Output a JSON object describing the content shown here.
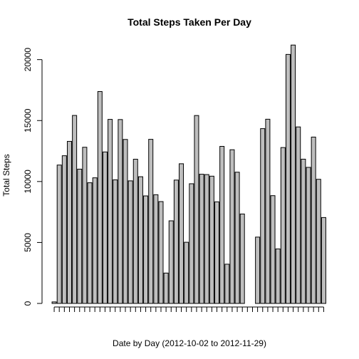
{
  "chart_data": {
    "type": "bar",
    "title": "Total Steps Taken Per Day",
    "xlabel": "Date by Day (2012-10-02 to 2012-11-29)",
    "ylabel": "Total Steps",
    "ylim": [
      0,
      21500
    ],
    "yticks": [
      0,
      5000,
      10000,
      15000,
      20000
    ],
    "grid": false,
    "values": [
      126,
      11352,
      12116,
      13294,
      15420,
      11015,
      12811,
      9900,
      10304,
      17382,
      12426,
      15098,
      10139,
      15084,
      13452,
      10056,
      11829,
      10395,
      8821,
      13460,
      8918,
      8355,
      2492,
      6778,
      10119,
      11458,
      5018,
      9819,
      15414,
      10600,
      10571,
      10439,
      8334,
      12883,
      3219,
      12608,
      10765,
      7336,
      0,
      0,
      5441,
      14339,
      15110,
      8841,
      4472,
      12787,
      20427,
      21194,
      14478,
      11834,
      11162,
      13646,
      10183,
      7047
    ]
  }
}
